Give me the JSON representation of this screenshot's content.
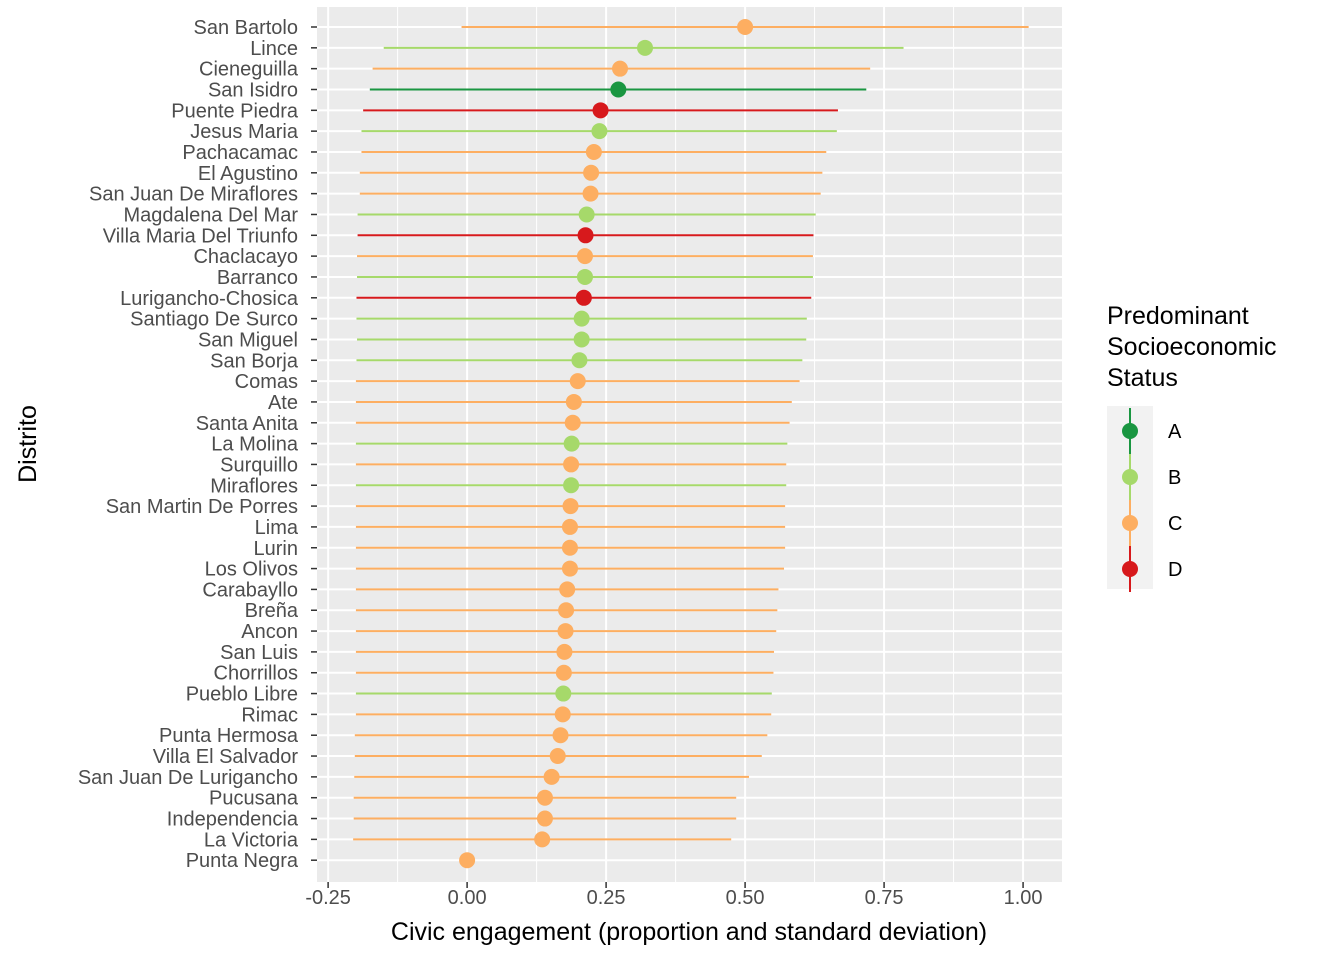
{
  "chart_data": {
    "type": "pointrange",
    "xlabel": "Civic engagement (proportion and standard deviation)",
    "ylabel": "Distrito",
    "xlim": [
      -0.27,
      1.07
    ],
    "x_ticks": [
      -0.25,
      0,
      0.25,
      0.5,
      0.75,
      1.0
    ],
    "x_tick_labels": [
      "-0.25",
      "0.00",
      "0.25",
      "0.50",
      "0.75",
      "1.00"
    ],
    "grid": true,
    "panel_background": "#EBEBEB",
    "legend": {
      "position": "right",
      "title_lines": [
        "Predominant",
        "Socioeconomic",
        "Status"
      ],
      "items": [
        {
          "label": "A",
          "color": "#1A9641"
        },
        {
          "label": "B",
          "color": "#A6D96A"
        },
        {
          "label": "C",
          "color": "#FDAE61"
        },
        {
          "label": "D",
          "color": "#D7191C"
        }
      ]
    },
    "points": [
      {
        "district": "San Bartolo",
        "status": "C",
        "value": 0.5,
        "low": -0.01,
        "high": 1.01
      },
      {
        "district": "Lince",
        "status": "B",
        "value": 0.32,
        "low": -0.15,
        "high": 0.785
      },
      {
        "district": "Cieneguilla",
        "status": "C",
        "value": 0.275,
        "low": -0.17,
        "high": 0.725
      },
      {
        "district": "San Isidro",
        "status": "A",
        "value": 0.272,
        "low": -0.175,
        "high": 0.718
      },
      {
        "district": "Puente Piedra",
        "status": "D",
        "value": 0.24,
        "low": -0.187,
        "high": 0.667
      },
      {
        "district": "Jesus Maria",
        "status": "B",
        "value": 0.238,
        "low": -0.19,
        "high": 0.665
      },
      {
        "district": "Pachacamac",
        "status": "C",
        "value": 0.228,
        "low": -0.19,
        "high": 0.646
      },
      {
        "district": "El Agustino",
        "status": "C",
        "value": 0.223,
        "low": -0.193,
        "high": 0.639
      },
      {
        "district": "San Juan De Miraflores",
        "status": "C",
        "value": 0.222,
        "low": -0.193,
        "high": 0.636
      },
      {
        "district": "Magdalena Del Mar",
        "status": "B",
        "value": 0.215,
        "low": -0.197,
        "high": 0.627
      },
      {
        "district": "Villa Maria Del Triunfo",
        "status": "D",
        "value": 0.213,
        "low": -0.197,
        "high": 0.623
      },
      {
        "district": "Chaclacayo",
        "status": "C",
        "value": 0.212,
        "low": -0.198,
        "high": 0.622
      },
      {
        "district": "Barranco",
        "status": "B",
        "value": 0.212,
        "low": -0.198,
        "high": 0.622
      },
      {
        "district": "Lurigancho-Chosica",
        "status": "D",
        "value": 0.21,
        "low": -0.199,
        "high": 0.619
      },
      {
        "district": "Santiago De Surco",
        "status": "B",
        "value": 0.206,
        "low": -0.199,
        "high": 0.611
      },
      {
        "district": "San Miguel",
        "status": "B",
        "value": 0.206,
        "low": -0.198,
        "high": 0.61
      },
      {
        "district": "San Borja",
        "status": "B",
        "value": 0.202,
        "low": -0.199,
        "high": 0.603
      },
      {
        "district": "Comas",
        "status": "C",
        "value": 0.199,
        "low": -0.2,
        "high": 0.598
      },
      {
        "district": "Ate",
        "status": "C",
        "value": 0.192,
        "low": -0.2,
        "high": 0.584
      },
      {
        "district": "Santa Anita",
        "status": "C",
        "value": 0.19,
        "low": -0.2,
        "high": 0.58
      },
      {
        "district": "La Molina",
        "status": "B",
        "value": 0.188,
        "low": -0.2,
        "high": 0.576
      },
      {
        "district": "Surquillo",
        "status": "C",
        "value": 0.187,
        "low": -0.2,
        "high": 0.574
      },
      {
        "district": "Miraflores",
        "status": "B",
        "value": 0.187,
        "low": -0.2,
        "high": 0.574
      },
      {
        "district": "San Martin De Porres",
        "status": "C",
        "value": 0.186,
        "low": -0.2,
        "high": 0.572
      },
      {
        "district": "Lima",
        "status": "C",
        "value": 0.185,
        "low": -0.2,
        "high": 0.572
      },
      {
        "district": "Lurin",
        "status": "C",
        "value": 0.185,
        "low": -0.2,
        "high": 0.572
      },
      {
        "district": "Los Olivos",
        "status": "C",
        "value": 0.185,
        "low": -0.2,
        "high": 0.57
      },
      {
        "district": "Carabayllo",
        "status": "C",
        "value": 0.18,
        "low": -0.2,
        "high": 0.56
      },
      {
        "district": "Breña",
        "status": "C",
        "value": 0.178,
        "low": -0.2,
        "high": 0.558
      },
      {
        "district": "Ancon",
        "status": "C",
        "value": 0.177,
        "low": -0.2,
        "high": 0.556
      },
      {
        "district": "San Luis",
        "status": "C",
        "value": 0.175,
        "low": -0.2,
        "high": 0.552
      },
      {
        "district": "Chorrillos",
        "status": "C",
        "value": 0.174,
        "low": -0.2,
        "high": 0.551
      },
      {
        "district": "Pueblo Libre",
        "status": "B",
        "value": 0.173,
        "low": -0.2,
        "high": 0.548
      },
      {
        "district": "Rimac",
        "status": "C",
        "value": 0.172,
        "low": -0.2,
        "high": 0.547
      },
      {
        "district": "Punta Hermosa",
        "status": "C",
        "value": 0.168,
        "low": -0.202,
        "high": 0.54
      },
      {
        "district": "Villa El Salvador",
        "status": "C",
        "value": 0.163,
        "low": -0.202,
        "high": 0.53
      },
      {
        "district": "San Juan De Lurigancho",
        "status": "C",
        "value": 0.152,
        "low": -0.203,
        "high": 0.507
      },
      {
        "district": "Pucusana",
        "status": "C",
        "value": 0.14,
        "low": -0.204,
        "high": 0.484
      },
      {
        "district": "Independencia",
        "status": "C",
        "value": 0.14,
        "low": -0.204,
        "high": 0.484
      },
      {
        "district": "La Victoria",
        "status": "C",
        "value": 0.135,
        "low": -0.205,
        "high": 0.475
      },
      {
        "district": "Punta Negra",
        "status": "C",
        "value": 0.0,
        "low": 0.0,
        "high": 0.0
      }
    ]
  }
}
